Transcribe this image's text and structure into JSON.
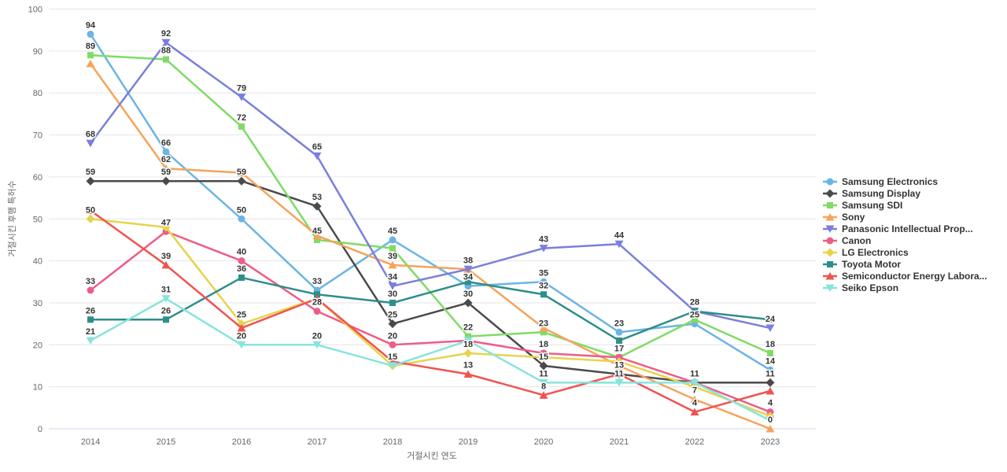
{
  "chart_data": {
    "type": "line",
    "title": "",
    "xlabel": "거절시킨 연도",
    "ylabel": "거절시킨 후행 특허수",
    "x": [
      2014,
      2015,
      2016,
      2017,
      2018,
      2019,
      2020,
      2021,
      2022,
      2023
    ],
    "ylim": [
      0,
      100
    ],
    "ytick_step": 10,
    "grid": true,
    "legend_position": "right",
    "series": [
      {
        "name": "Samsung Electronics",
        "color": "#6CB4E4",
        "marker": "circle",
        "values": [
          94,
          66,
          50,
          33,
          45,
          34,
          35,
          23,
          25,
          14
        ],
        "labels": [
          "94",
          "66",
          "50",
          "33",
          "45",
          "34",
          "35",
          "23",
          "25",
          "14"
        ]
      },
      {
        "name": "Samsung Display",
        "color": "#4A4A4A",
        "marker": "diamond",
        "values": [
          59,
          59,
          59,
          53,
          25,
          30,
          15,
          13,
          11,
          11
        ],
        "labels": [
          "59",
          "59",
          "59",
          "53",
          "25",
          "30",
          "15",
          "",
          "",
          "11"
        ]
      },
      {
        "name": "Samsung SDI",
        "color": "#7FDB66",
        "marker": "square",
        "values": [
          89,
          88,
          72,
          45,
          43,
          22,
          23,
          17,
          26,
          18
        ],
        "labels": [
          "89",
          "88",
          "72",
          "45",
          "",
          "22",
          "23",
          "",
          "",
          "18"
        ]
      },
      {
        "name": "Sony",
        "color": "#F6A35C",
        "marker": "triangle",
        "values": [
          87,
          62,
          61,
          46,
          39,
          38,
          24,
          15,
          7,
          0
        ],
        "labels": [
          "",
          "62",
          "",
          "",
          "39",
          "38",
          "",
          "",
          "7",
          "0"
        ]
      },
      {
        "name": "Panasonic Intellectual Prop...",
        "color": "#7A7FDC",
        "marker": "triangle-down",
        "values": [
          68,
          92,
          79,
          65,
          34,
          38,
          43,
          44,
          28,
          24
        ],
        "labels": [
          "68",
          "92",
          "79",
          "65",
          "34",
          "",
          "43",
          "44",
          "",
          "24"
        ]
      },
      {
        "name": "Canon",
        "color": "#EC5E87",
        "marker": "circle",
        "values": [
          33,
          47,
          40,
          28,
          20,
          21,
          18,
          17,
          11,
          4
        ],
        "labels": [
          "33",
          "47",
          "40",
          "28",
          "20",
          "",
          "18",
          "17",
          "",
          "4"
        ]
      },
      {
        "name": "LG Electronics",
        "color": "#E7D34C",
        "marker": "diamond",
        "values": [
          50,
          48,
          25,
          31,
          15,
          18,
          17,
          16,
          10,
          3
        ],
        "labels": [
          "50",
          "",
          "25",
          "",
          "",
          "18",
          "",
          "",
          "",
          ""
        ]
      },
      {
        "name": "Toyota Motor",
        "color": "#2E8E89",
        "marker": "square",
        "values": [
          26,
          26,
          36,
          32,
          30,
          35,
          32,
          21,
          28,
          26
        ],
        "labels": [
          "26",
          "26",
          "36",
          "",
          "30",
          "",
          "32",
          "",
          "28",
          ""
        ]
      },
      {
        "name": "Semiconductor Energy Labora...",
        "color": "#F0534F",
        "marker": "triangle",
        "values": [
          52,
          39,
          24,
          31,
          16,
          13,
          8,
          13,
          4,
          9
        ],
        "labels": [
          "",
          "39",
          "",
          "",
          "",
          "13",
          "8",
          "13",
          "4",
          ""
        ]
      },
      {
        "name": "Seiko Epson",
        "color": "#87E4DC",
        "marker": "triangle-down",
        "values": [
          21,
          31,
          20,
          20,
          15,
          21,
          11,
          11,
          11,
          2
        ],
        "labels": [
          "21",
          "31",
          "20",
          "20",
          "15",
          "",
          "11",
          "11",
          "11",
          ""
        ]
      }
    ]
  },
  "colors": {
    "background": "#ffffff",
    "gridline": "#e6e6e6",
    "axis_line": "#ccd6eb",
    "tick_label": "#666666",
    "data_label": "#333333",
    "legend_label": "#333333"
  }
}
